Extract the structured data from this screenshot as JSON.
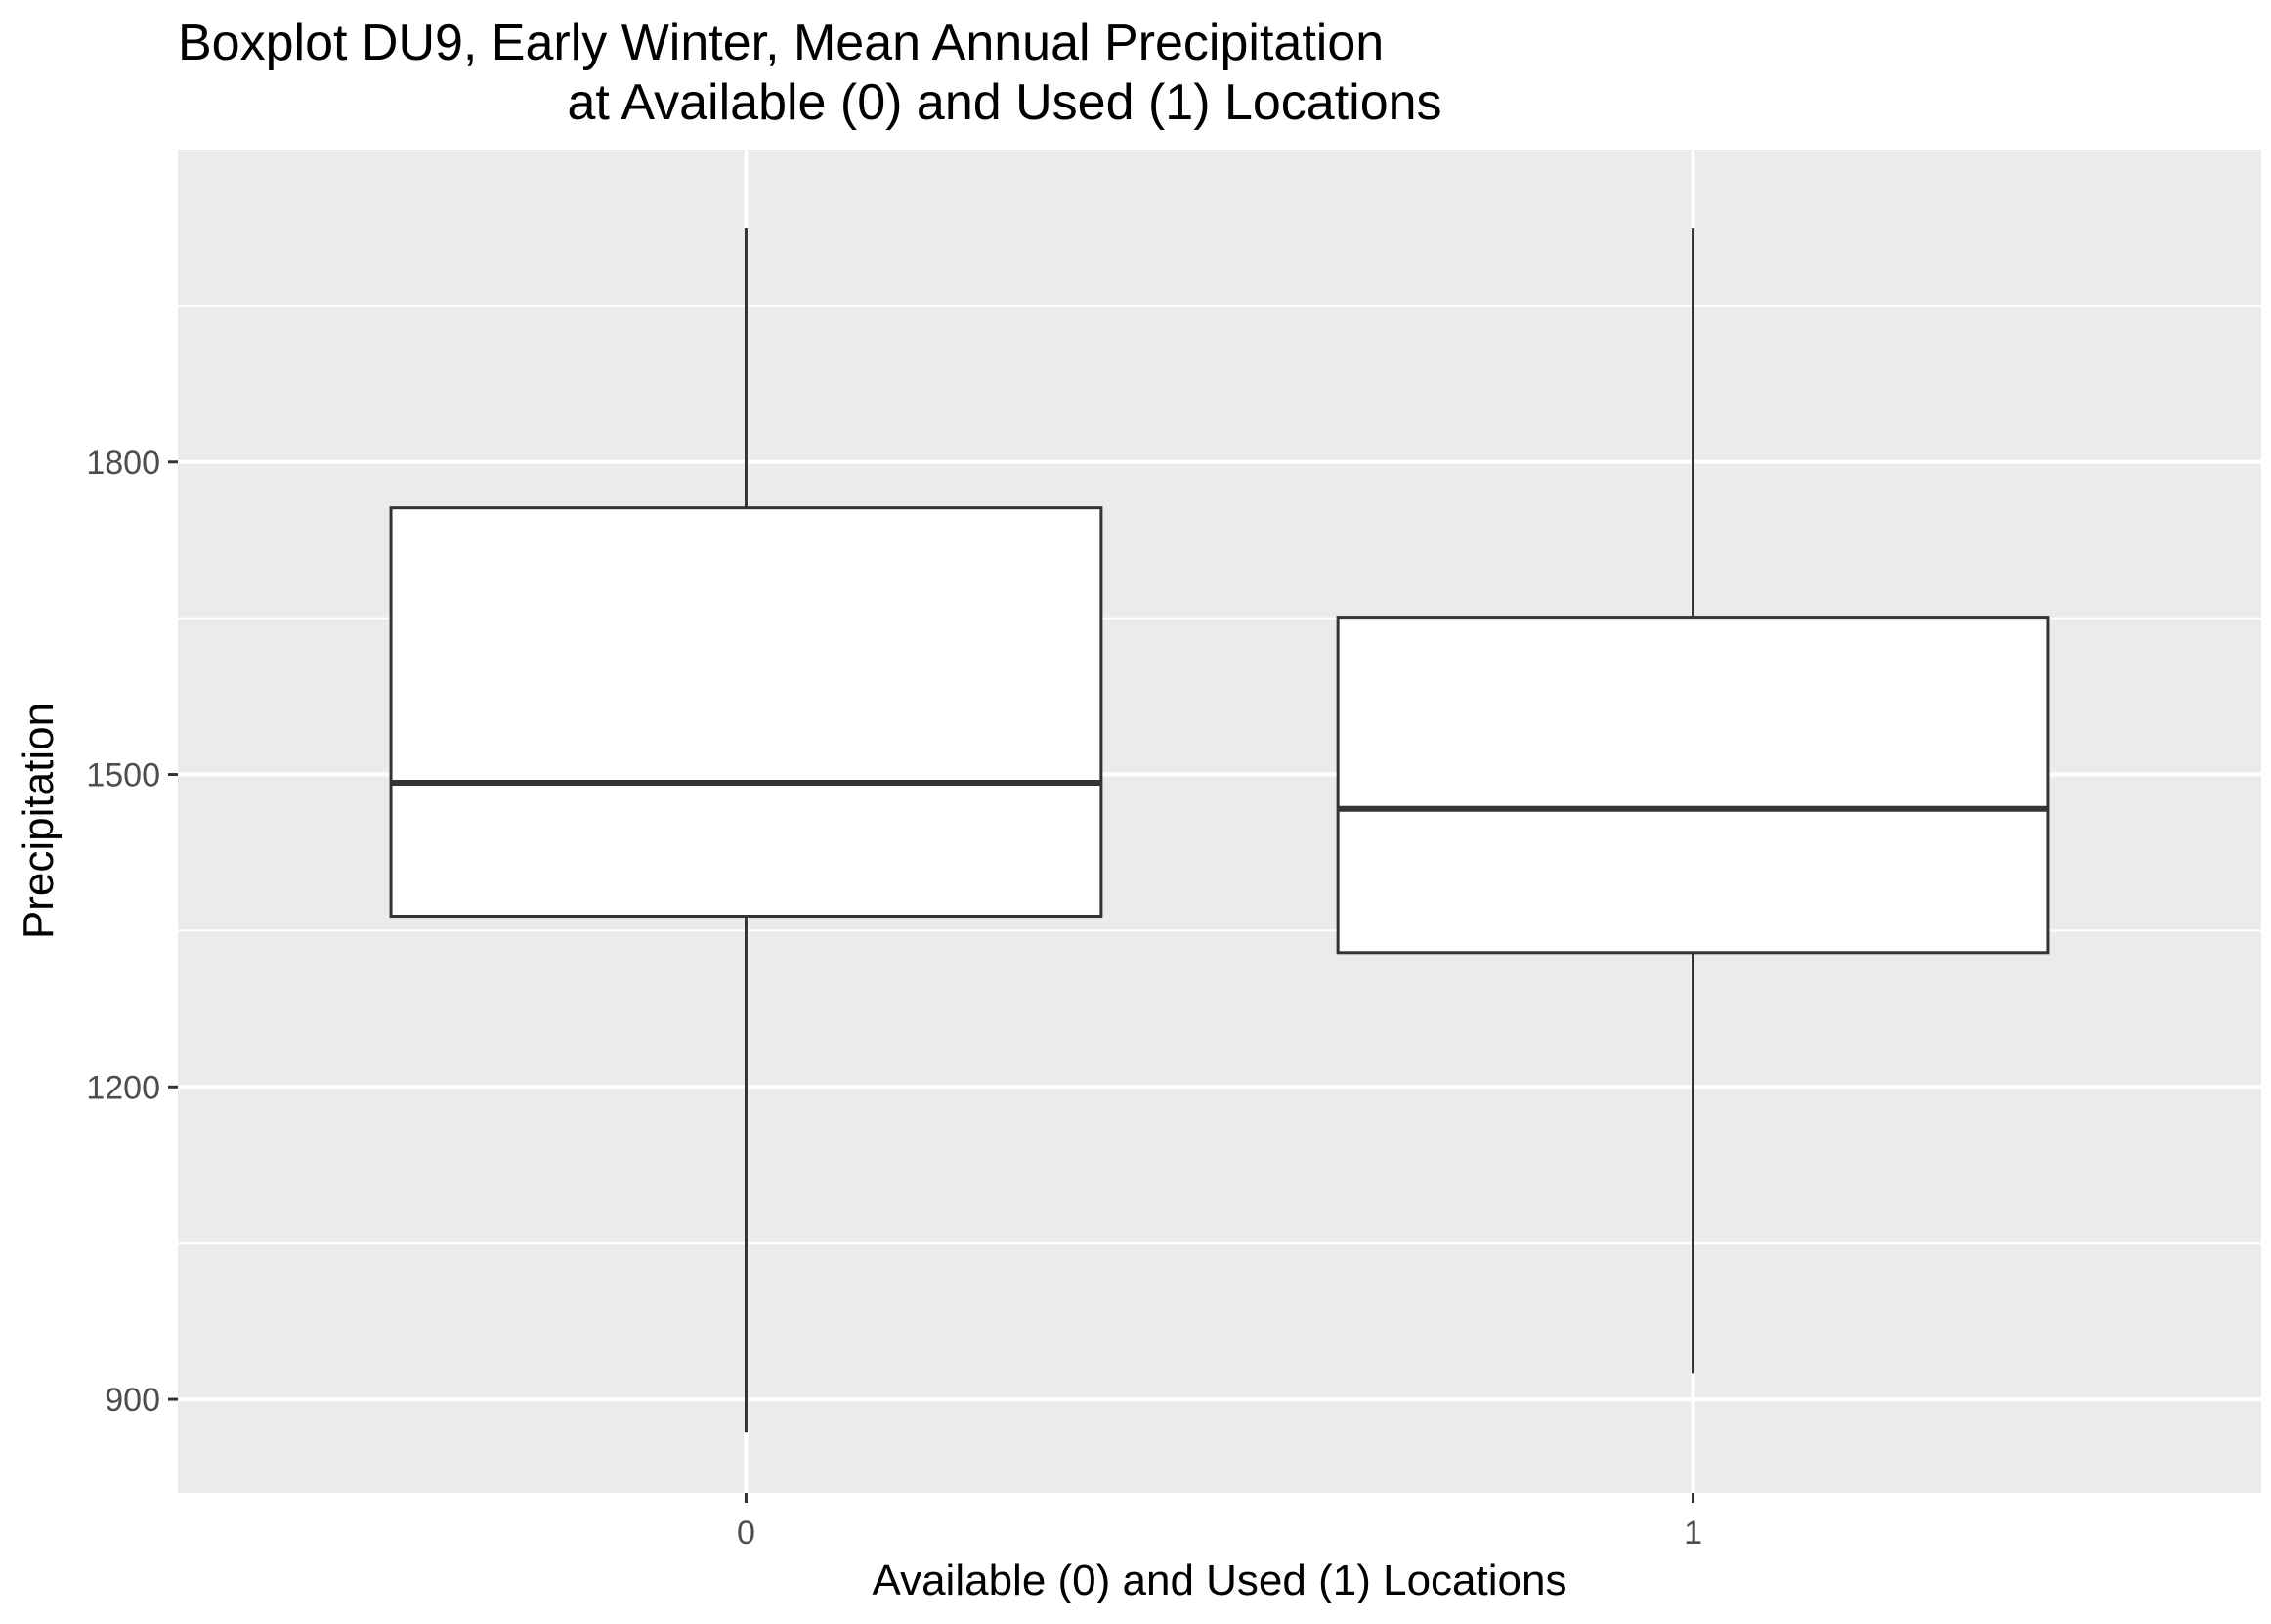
{
  "chart_data": {
    "type": "boxplot",
    "title_lines": [
      "Boxplot DU9, Early Winter, Mean Annual Precipitation",
      "at Available (0) and Used (1) Locations"
    ],
    "xlabel": "Available (0) and Used (1) Locations",
    "ylabel": "Precipitation",
    "categories": [
      "0",
      "1"
    ],
    "boxes": [
      {
        "category": "0",
        "whisker_low": 868,
        "q1": 1364,
        "median": 1492,
        "q3": 1756,
        "whisker_high": 2025
      },
      {
        "category": "1",
        "whisker_low": 925,
        "q1": 1329,
        "median": 1467,
        "q3": 1651,
        "whisker_high": 2025
      }
    ],
    "y_ticks": [
      900,
      1200,
      1500,
      1800
    ],
    "y_tick_labels": [
      "900",
      "1200",
      "1500",
      "1800"
    ],
    "ylim": [
      810,
      2100
    ],
    "grid": true,
    "colors": {
      "panel_background": "#ebebeb",
      "grid_line": "#ffffff",
      "box_fill": "#ffffff",
      "box_stroke": "#333333",
      "tick_label": "#4d4d4d",
      "text": "#000000"
    }
  }
}
